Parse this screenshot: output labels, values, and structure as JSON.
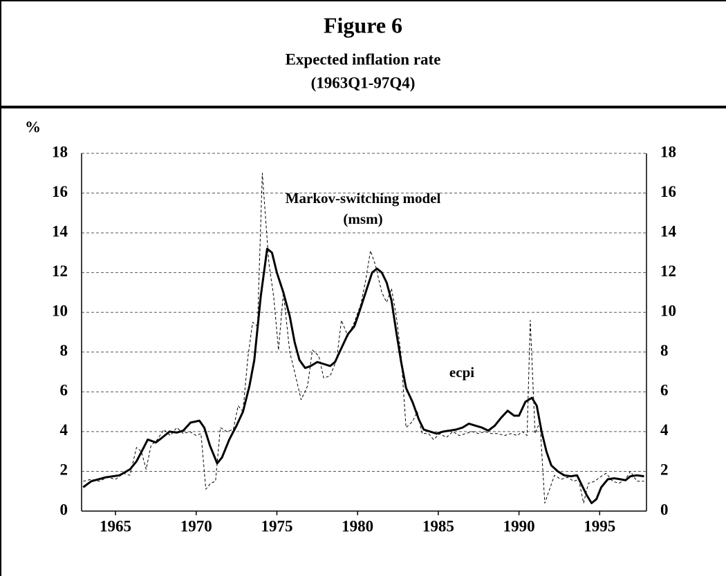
{
  "chart_data": {
    "type": "line",
    "title": "Figure 6",
    "subtitle": "Expected inflation rate",
    "period": "(1963Q1-97Q4)",
    "y_label": "%",
    "annotations": [
      "Markov-switching model",
      "(msm)",
      "ecpi"
    ],
    "xlim": [
      1962.9,
      1997.9
    ],
    "xticks": [
      1965,
      1970,
      1975,
      1980,
      1985,
      1990,
      1995
    ],
    "ylim": [
      0,
      18
    ],
    "yticks": [
      0,
      2,
      4,
      6,
      8,
      10,
      12,
      14,
      16,
      18
    ],
    "grid": true,
    "series": [
      {
        "name": "ecpi",
        "color": "#000000",
        "style": "solid",
        "x": [
          1963.0,
          1963.5,
          1964.4,
          1965.25,
          1965.9,
          1966.3,
          1966.75,
          1967.0,
          1967.5,
          1967.9,
          1968.35,
          1968.8,
          1969.2,
          1969.65,
          1970.2,
          1970.5,
          1970.85,
          1971.3,
          1971.6,
          1972.05,
          1972.5,
          1972.9,
          1973.3,
          1973.6,
          1974.0,
          1974.4,
          1974.7,
          1975.0,
          1975.4,
          1975.8,
          1976.1,
          1976.4,
          1976.75,
          1977.1,
          1977.5,
          1977.9,
          1978.3,
          1978.6,
          1979.0,
          1979.4,
          1979.8,
          1980.1,
          1980.5,
          1980.9,
          1981.2,
          1981.5,
          1981.8,
          1982.1,
          1982.4,
          1982.7,
          1983.0,
          1983.4,
          1983.8,
          1984.1,
          1984.5,
          1984.9,
          1985.3,
          1985.7,
          1986.1,
          1986.5,
          1986.9,
          1987.3,
          1987.7,
          1988.1,
          1988.5,
          1988.9,
          1989.3,
          1989.7,
          1990.0,
          1990.4,
          1990.8,
          1991.1,
          1991.4,
          1991.7,
          1992.0,
          1992.4,
          1992.8,
          1993.2,
          1993.6,
          1993.9,
          1994.2,
          1994.5,
          1994.8,
          1995.1,
          1995.5,
          1995.9,
          1996.3,
          1996.6,
          1996.9,
          1997.3,
          1997.75
        ],
        "values": [
          1.2,
          1.5,
          1.7,
          1.8,
          2.1,
          2.5,
          3.2,
          3.6,
          3.45,
          3.7,
          4.0,
          3.95,
          4.05,
          4.45,
          4.55,
          4.2,
          3.3,
          2.4,
          2.7,
          3.6,
          4.3,
          5.0,
          6.3,
          7.6,
          10.8,
          13.2,
          13.0,
          12.0,
          11.0,
          9.8,
          8.5,
          7.6,
          7.2,
          7.3,
          7.5,
          7.4,
          7.3,
          7.5,
          8.2,
          8.9,
          9.3,
          10.0,
          11.0,
          12.0,
          12.2,
          12.0,
          11.5,
          10.6,
          9.0,
          7.5,
          6.2,
          5.5,
          4.6,
          4.1,
          4.0,
          3.9,
          4.0,
          4.05,
          4.1,
          4.2,
          4.4,
          4.3,
          4.2,
          4.05,
          4.3,
          4.7,
          5.05,
          4.8,
          4.8,
          5.5,
          5.7,
          5.3,
          4.0,
          3.0,
          2.3,
          2.0,
          1.8,
          1.75,
          1.8,
          1.3,
          0.8,
          0.4,
          0.6,
          1.2,
          1.6,
          1.65,
          1.6,
          1.55,
          1.75,
          1.8,
          1.75
        ]
      },
      {
        "name": "msm",
        "color": "#000000",
        "style": "dashed",
        "x": [
          1963.0,
          1963.5,
          1964.0,
          1964.5,
          1965.0,
          1965.5,
          1965.9,
          1966.3,
          1966.6,
          1966.9,
          1967.2,
          1967.6,
          1968.0,
          1968.4,
          1968.8,
          1969.2,
          1969.6,
          1970.0,
          1970.3,
          1970.6,
          1970.9,
          1971.2,
          1971.5,
          1971.9,
          1972.3,
          1972.6,
          1972.9,
          1973.2,
          1973.5,
          1973.8,
          1974.1,
          1974.5,
          1974.8,
          1975.1,
          1975.4,
          1975.8,
          1976.1,
          1976.5,
          1976.9,
          1977.2,
          1977.6,
          1977.9,
          1978.3,
          1978.7,
          1979.0,
          1979.4,
          1979.8,
          1980.2,
          1980.5,
          1980.8,
          1981.1,
          1981.5,
          1981.8,
          1982.1,
          1982.4,
          1982.7,
          1983.0,
          1983.4,
          1983.7,
          1984.0,
          1984.4,
          1984.7,
          1985.1,
          1985.5,
          1985.9,
          1986.3,
          1986.7,
          1987.1,
          1987.5,
          1987.9,
          1988.3,
          1988.7,
          1989.1,
          1989.5,
          1989.9,
          1990.2,
          1990.5,
          1990.7,
          1991.0,
          1991.3,
          1991.6,
          1991.9,
          1992.2,
          1992.6,
          1993.0,
          1993.4,
          1993.7,
          1994.0,
          1994.3,
          1994.7,
          1995.0,
          1995.4,
          1995.8,
          1996.2,
          1996.6,
          1996.9,
          1997.3,
          1997.75
        ],
        "values": [
          1.5,
          1.6,
          1.5,
          1.7,
          1.6,
          1.9,
          1.8,
          3.2,
          3.0,
          2.1,
          3.3,
          3.6,
          4.1,
          3.8,
          4.2,
          3.9,
          4.0,
          3.8,
          3.9,
          1.1,
          1.4,
          1.5,
          4.2,
          4.0,
          4.1,
          5.3,
          5.0,
          7.7,
          9.5,
          9.3,
          17.0,
          12.5,
          10.8,
          8.1,
          11.0,
          8.0,
          7.0,
          5.6,
          6.3,
          8.1,
          7.8,
          6.7,
          6.8,
          7.6,
          9.6,
          8.8,
          9.5,
          10.4,
          11.6,
          13.1,
          12.4,
          11.0,
          10.5,
          11.2,
          9.8,
          7.8,
          4.2,
          4.5,
          5.0,
          3.9,
          3.9,
          3.6,
          3.9,
          3.7,
          4.0,
          3.8,
          3.9,
          4.0,
          3.9,
          4.0,
          3.9,
          3.9,
          3.8,
          3.9,
          3.8,
          4.0,
          3.8,
          9.6,
          3.9,
          4.5,
          0.4,
          1.1,
          1.8,
          1.6,
          1.7,
          1.5,
          1.6,
          0.4,
          1.4,
          1.5,
          1.7,
          1.9,
          1.5,
          1.4,
          1.6,
          2.0,
          1.5,
          1.5
        ]
      }
    ]
  }
}
